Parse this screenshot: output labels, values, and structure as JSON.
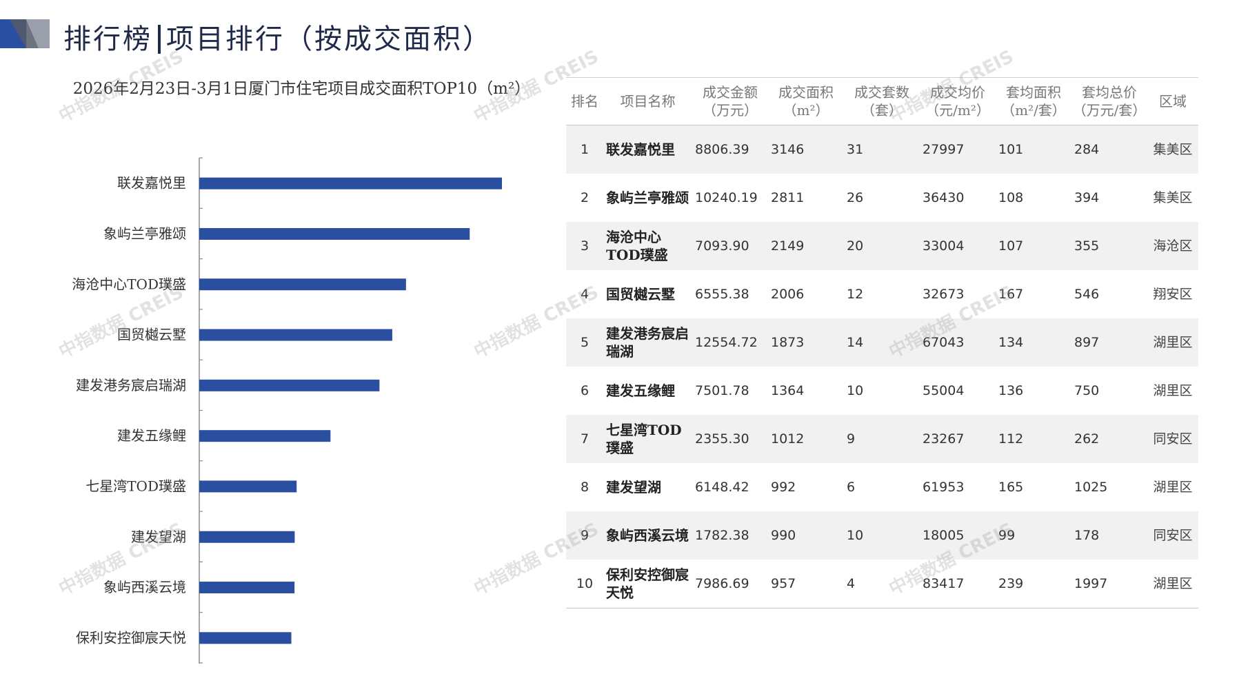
{
  "header": {
    "title_left": "排行榜",
    "title_right": "项目排行（按成交面积）"
  },
  "chart_data": {
    "type": "bar",
    "orientation": "horizontal",
    "title": "2026年2月23日-3月1日厦门市住宅项目成交面积TOP10（m²）",
    "categories": [
      "联发嘉悦里",
      "象屿兰亭雅颂",
      "海沧中心TOD璞盛",
      "国贸樾云墅",
      "建发港务宸启瑞湖",
      "建发五缘鲤",
      "七星湾TOD璞盛",
      "建发望湖",
      "象屿西溪云境",
      "保利安控御宸天悦"
    ],
    "values": [
      3146,
      2811,
      2149,
      2006,
      1873,
      1364,
      1012,
      992,
      990,
      957
    ],
    "bar_color": "#2b4fa0",
    "grid": false,
    "value_axis_labels": false
  },
  "table": {
    "headers": [
      {
        "line1": "排名",
        "line2": ""
      },
      {
        "line1": "项目名称",
        "line2": ""
      },
      {
        "line1": "成交金额",
        "line2": "（万元）"
      },
      {
        "line1": "成交面积",
        "line2": "（m²）"
      },
      {
        "line1": "成交套数",
        "line2": "（套）"
      },
      {
        "line1": "成交均价",
        "line2": "（元/m²）"
      },
      {
        "line1": "套均面积",
        "line2": "（m²/套）"
      },
      {
        "line1": "套均总价",
        "line2": "（万元/套）"
      },
      {
        "line1": "区域",
        "line2": ""
      }
    ],
    "rows": [
      [
        "1",
        "联发嘉悦里",
        "8806.39",
        "3146",
        "31",
        "27997",
        "101",
        "284",
        "集美区"
      ],
      [
        "2",
        "象屿兰亭雅颂",
        "10240.19",
        "2811",
        "26",
        "36430",
        "108",
        "394",
        "集美区"
      ],
      [
        "3",
        "海沧中心TOD璞盛",
        "7093.90",
        "2149",
        "20",
        "33004",
        "107",
        "355",
        "海沧区"
      ],
      [
        "4",
        "国贸樾云墅",
        "6555.38",
        "2006",
        "12",
        "32673",
        "167",
        "546",
        "翔安区"
      ],
      [
        "5",
        "建发港务宸启瑞湖",
        "12554.72",
        "1873",
        "14",
        "67043",
        "134",
        "897",
        "湖里区"
      ],
      [
        "6",
        "建发五缘鲤",
        "7501.78",
        "1364",
        "10",
        "55004",
        "136",
        "750",
        "湖里区"
      ],
      [
        "7",
        "七星湾TOD璞盛",
        "2355.30",
        "1012",
        "9",
        "23267",
        "112",
        "262",
        "同安区"
      ],
      [
        "8",
        "建发望湖",
        "6148.42",
        "992",
        "6",
        "61953",
        "165",
        "1025",
        "湖里区"
      ],
      [
        "9",
        "象屿西溪云境",
        "1782.38",
        "990",
        "10",
        "18005",
        "99",
        "178",
        "同安区"
      ],
      [
        "10",
        "保利安控御宸天悦",
        "7986.69",
        "957",
        "4",
        "83417",
        "239",
        "1997",
        "湖里区"
      ]
    ]
  },
  "watermark": "中指数据 CREIS",
  "colors": {
    "accent": "#2b4fa0",
    "title": "#1f2a4a",
    "row_alt": "#f1f1f1"
  }
}
